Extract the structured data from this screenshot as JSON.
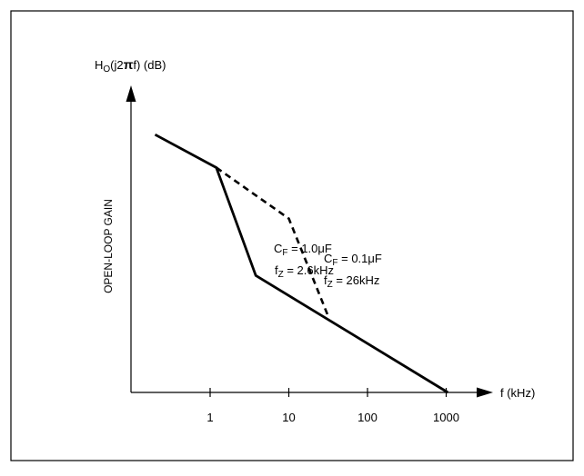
{
  "chart_data": {
    "type": "line",
    "ylabel_main": "H",
    "ylabel_sub": "O",
    "ylabel_tail": "(j2",
    "ylabel_pi": "π",
    "ylabel_end": "f) (dB)",
    "y_axis_side_label": "OPEN-LOOP GAIN",
    "xlabel": "f (kHz)",
    "x_scale": "log",
    "x_ticks": [
      {
        "value": 1,
        "label": "1"
      },
      {
        "value": 10,
        "label": "10"
      },
      {
        "value": 100,
        "label": "100"
      },
      {
        "value": 1000,
        "label": "1000"
      }
    ],
    "grid": false,
    "series": [
      {
        "style": "solid",
        "points": [
          [
            0.2,
            8.6
          ],
          [
            1.2,
            7.5
          ],
          [
            3.8,
            3.9
          ],
          [
            1050,
            0
          ]
        ]
      },
      {
        "style": "dashed",
        "points": [
          [
            1.2,
            7.5
          ],
          [
            10,
            5.8
          ],
          [
            31,
            2.6
          ]
        ]
      }
    ],
    "annotations": [
      {
        "lines": [
          {
            "main": "C",
            "sub": "F",
            "rest": " = 1.0",
            "mu": "μ",
            "tail": "F"
          },
          {
            "main": "f",
            "sub": "Z",
            "rest": " = 2.6kHz",
            "mu": "",
            "tail": ""
          }
        ]
      },
      {
        "lines": [
          {
            "main": "C",
            "sub": "F",
            "rest": " = 0.1",
            "mu": "μ",
            "tail": "F"
          },
          {
            "main": "f",
            "sub": "Z",
            "rest": " = 26kHz",
            "mu": "",
            "tail": ""
          }
        ]
      }
    ]
  }
}
